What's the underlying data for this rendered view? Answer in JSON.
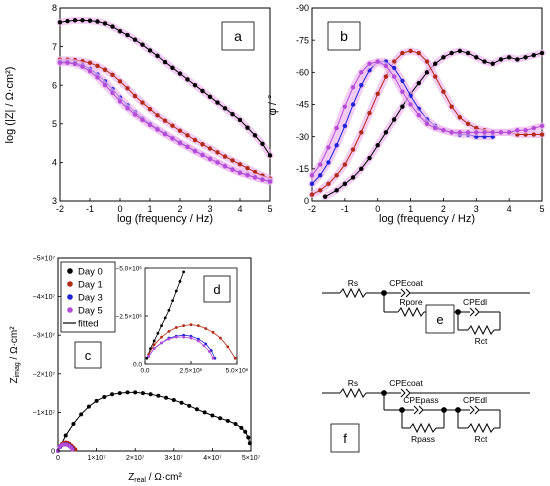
{
  "chart_data": [
    {
      "type": "scatter",
      "panel": "a",
      "xlabel": "log (frequency / Hz)",
      "ylabel": "log (|Z| / Ω·cm²)",
      "xlim": [
        -2,
        5
      ],
      "ylim": [
        3,
        8
      ],
      "xticks": [
        "-2",
        "-1",
        "0",
        "1",
        "2",
        "3",
        "4",
        "5"
      ],
      "yticks": [
        "3",
        "4",
        "5",
        "6",
        "7",
        "8"
      ],
      "series": [
        {
          "color": "#000000",
          "x": [
            -2,
            -1.75,
            -1.5,
            -1.25,
            -1,
            -0.75,
            -0.5,
            -0.25,
            0,
            0.25,
            0.5,
            0.75,
            1,
            1.25,
            1.5,
            1.75,
            2,
            2.25,
            2.5,
            2.75,
            3,
            3.25,
            3.5,
            3.75,
            4,
            4.25,
            4.5,
            4.75,
            5
          ],
          "y": [
            7.63,
            7.66,
            7.68,
            7.68,
            7.67,
            7.65,
            7.6,
            7.52,
            7.4,
            7.3,
            7.18,
            7.05,
            6.9,
            6.76,
            6.6,
            6.45,
            6.3,
            6.15,
            6.0,
            5.85,
            5.7,
            5.55,
            5.4,
            5.25,
            5.1,
            4.9,
            4.7,
            4.48,
            4.18
          ]
        },
        {
          "color": "#b22a17",
          "x": [
            -2,
            -1.75,
            -1.5,
            -1.25,
            -1,
            -0.75,
            -0.5,
            -0.25,
            0,
            0.25,
            0.5,
            0.75,
            1,
            1.25,
            1.5,
            1.75,
            2,
            2.25,
            2.5,
            2.75,
            3,
            3.25,
            3.5,
            3.75,
            4,
            4.25,
            4.5,
            4.75,
            5
          ],
          "y": [
            6.66,
            6.66,
            6.65,
            6.62,
            6.58,
            6.5,
            6.4,
            6.27,
            6.1,
            5.92,
            5.72,
            5.55,
            5.38,
            5.22,
            5.08,
            4.95,
            4.82,
            4.7,
            4.58,
            4.47,
            4.36,
            4.26,
            4.15,
            4.05,
            3.95,
            3.85,
            3.75,
            3.66,
            3.58
          ]
        },
        {
          "color": "#2222d8",
          "x": [
            -2,
            -1.75,
            -1.5,
            -1.25,
            -1,
            -0.75,
            -0.5,
            -0.25,
            0,
            0.25,
            0.5,
            0.75,
            1,
            1.25,
            1.5,
            1.75,
            2,
            2.25,
            2.5,
            2.75,
            3,
            3.25,
            3.5,
            3.75,
            4,
            4.25,
            4.5,
            4.75,
            5
          ],
          "y": [
            6.6,
            6.6,
            6.58,
            6.52,
            6.42,
            6.28,
            6.1,
            5.9,
            5.68,
            5.48,
            5.3,
            5.14,
            5.0,
            4.87,
            4.75,
            4.63,
            4.52,
            4.41,
            4.3,
            4.2,
            4.1,
            4.0,
            3.91,
            3.82,
            3.74,
            3.68,
            3.62,
            3.56,
            3.52
          ]
        },
        {
          "color": "#b34cd8",
          "x": [
            -2,
            -1.75,
            -1.5,
            -1.25,
            -1,
            -0.75,
            -0.5,
            -0.25,
            0,
            0.25,
            0.5,
            0.75,
            1,
            1.25,
            1.5,
            1.75,
            2,
            2.25,
            2.5,
            2.75,
            3,
            3.25,
            3.5,
            3.75,
            4,
            4.25,
            4.5,
            4.75,
            5
          ],
          "y": [
            6.58,
            6.58,
            6.55,
            6.48,
            6.36,
            6.2,
            6.0,
            5.8,
            5.58,
            5.4,
            5.24,
            5.1,
            4.97,
            4.85,
            4.73,
            4.62,
            4.5,
            4.4,
            4.29,
            4.19,
            4.09,
            4.0,
            3.9,
            3.81,
            3.73,
            3.67,
            3.61,
            3.55,
            3.5
          ]
        }
      ]
    },
    {
      "type": "scatter",
      "panel": "b",
      "xlabel": "log (frequency / Hz)",
      "ylabel": "φ / °",
      "xlim": [
        -2,
        5
      ],
      "ylim": [
        0,
        -90
      ],
      "xticks": [
        "-2",
        "-1",
        "0",
        "1",
        "2",
        "3",
        "4",
        "5"
      ],
      "yticks": [
        "0",
        "-15",
        "-30",
        "-45",
        "-60",
        "-75",
        "-90"
      ],
      "series": [
        {
          "color": "#000000",
          "x": [
            -1.6,
            -1.25,
            -1,
            -0.75,
            -0.5,
            -0.25,
            0,
            0.25,
            0.5,
            0.75,
            1,
            1.25,
            1.5,
            1.75,
            2,
            2.25,
            2.5,
            2.75,
            3,
            3.25,
            3.5,
            3.75,
            4,
            4.25,
            4.5,
            4.75,
            5
          ],
          "y": [
            -2,
            -5,
            -8,
            -11,
            -15,
            -20,
            -26,
            -32,
            -38,
            -44,
            -50,
            -55,
            -60,
            -64,
            -67,
            -69,
            -70,
            -69,
            -67,
            -65,
            -64,
            -66,
            -67,
            -66,
            -67,
            -68,
            -69
          ]
        },
        {
          "color": "#b22a17",
          "x": [
            -2,
            -1.75,
            -1.5,
            -1.25,
            -1,
            -0.75,
            -0.5,
            -0.25,
            0,
            0.25,
            0.5,
            0.75,
            1,
            1.25,
            1.5,
            1.75,
            2,
            2.25,
            2.5,
            2.75,
            3,
            3.25,
            3.5,
            3.75,
            4,
            4.25,
            4.5,
            4.75,
            5
          ],
          "y": [
            -3,
            -5,
            -8,
            -12,
            -17,
            -24,
            -32,
            -41,
            -50,
            -58,
            -65,
            -69,
            -70,
            -69,
            -65,
            -58,
            -51,
            -44,
            -39,
            -36,
            -34,
            -33,
            -32,
            -32,
            -32,
            -31,
            -31,
            -31,
            -31
          ]
        },
        {
          "color": "#2222d8",
          "x": [
            -2,
            -1.75,
            -1.5,
            -1.25,
            -1,
            -0.75,
            -0.5,
            -0.25,
            0,
            0.25,
            0.5,
            0.75,
            1,
            1.25,
            1.5,
            1.75,
            2,
            2.25,
            2.5,
            2.75,
            3,
            3.25,
            3.5
          ],
          "y": [
            -8,
            -12,
            -18,
            -26,
            -35,
            -45,
            -54,
            -61,
            -65,
            -65,
            -62,
            -56,
            -49,
            -43,
            -38,
            -35,
            -33,
            -32,
            -31,
            -31,
            -30,
            -30,
            -30
          ]
        },
        {
          "color": "#b34cd8",
          "x": [
            -2,
            -1.75,
            -1.5,
            -1.25,
            -1,
            -0.75,
            -0.5,
            -0.25,
            0,
            0.25,
            0.5,
            0.75,
            1,
            1.25,
            1.5,
            1.75,
            2,
            2.25,
            2.5,
            2.75,
            3,
            3.25,
            3.5,
            3.75,
            4,
            4.25,
            4.5,
            4.75,
            5
          ],
          "y": [
            -12,
            -17,
            -25,
            -34,
            -44,
            -53,
            -60,
            -64,
            -65,
            -63,
            -58,
            -51,
            -45,
            -40,
            -36,
            -34,
            -33,
            -32,
            -32,
            -32,
            -32,
            -32,
            -32,
            -32,
            -32,
            -33,
            -33,
            -34,
            -35
          ]
        }
      ]
    },
    {
      "type": "scatter",
      "panel": "c",
      "xlabel_main": "Z",
      "xlabel_sub": "real",
      "xlabel_unit": " / Ω·cm²",
      "ylabel_main": "Z",
      "ylabel_sub": "imag",
      "ylabel_unit": " / Ω·cm²",
      "xlim": [
        0,
        50000000
      ],
      "ylim": [
        0,
        -50000000
      ],
      "xticks": [
        {
          "value": 0,
          "label": "0"
        },
        {
          "value": 10000000,
          "label": "1×10⁷"
        },
        {
          "value": 20000000,
          "label": "2×10⁷"
        },
        {
          "value": 30000000,
          "label": "3×10⁷"
        },
        {
          "value": 40000000,
          "label": "4×10⁷"
        },
        {
          "value": 50000000,
          "label": "5×10⁷"
        }
      ],
      "yticks": [
        {
          "value": 0,
          "label": "0"
        },
        {
          "value": -10000000,
          "label": "−1×10⁷"
        },
        {
          "value": -20000000,
          "label": "−2×10⁷"
        },
        {
          "value": -30000000,
          "label": "−3×10⁷"
        },
        {
          "value": -40000000,
          "label": "−4×10⁷"
        },
        {
          "value": -50000000,
          "label": "−5×10⁷"
        }
      ],
      "legend": {
        "placement": "top-left",
        "entries": [
          {
            "label": "Day 0",
            "color": "#000000",
            "marker": "dot"
          },
          {
            "label": "Day 1",
            "color": "#b22a17",
            "marker": "dot"
          },
          {
            "label": "Day 3",
            "color": "#2222d8",
            "marker": "dot"
          },
          {
            "label": "Day 5",
            "color": "#b34cd8",
            "marker": "dot"
          },
          {
            "label": "fitted",
            "color": "#000000",
            "marker": "line"
          }
        ]
      },
      "series": [
        {
          "color": "#000000",
          "x": [
            500000,
            2000000,
            4000000,
            6000000,
            8000000,
            10000000,
            12000000,
            14000000,
            16000000,
            18000000,
            20000000,
            22000000,
            24000000,
            26000000,
            28000000,
            30000000,
            32000000,
            34000000,
            36000000,
            38000000,
            40000000,
            42000000,
            44000000,
            46000000,
            47500000,
            48500000,
            49300000,
            49700000
          ],
          "y": [
            -1000000,
            -4000000,
            -7000000,
            -9500000,
            -11500000,
            -13000000,
            -14000000,
            -14700000,
            -15000000,
            -15200000,
            -15200000,
            -15000000,
            -14700000,
            -14300000,
            -13800000,
            -13200000,
            -12500000,
            -11700000,
            -10800000,
            -10000000,
            -9200000,
            -8500000,
            -7800000,
            -7000000,
            -6000000,
            -5000000,
            -3500000,
            -2000000
          ]
        },
        {
          "color": "#b22a17",
          "x": [
            0,
            500000,
            1000000,
            1500000,
            2000000,
            2500000,
            3000000,
            3500000,
            4000000,
            4500000
          ],
          "y": [
            0,
            -1200000,
            -1800000,
            -2100000,
            -2200000,
            -2100000,
            -1800000,
            -1400000,
            -900000,
            -400000
          ]
        },
        {
          "color": "#2222d8",
          "x": [
            0,
            400000,
            900000,
            1400000,
            1900000,
            2400000,
            2900000,
            3400000,
            3800000
          ],
          "y": [
            0,
            -1000000,
            -1500000,
            -1700000,
            -1750000,
            -1650000,
            -1400000,
            -1000000,
            -500000
          ]
        },
        {
          "color": "#b34cd8",
          "x": [
            0,
            400000,
            900000,
            1400000,
            1900000,
            2400000,
            2900000,
            3400000,
            3700000
          ],
          "y": [
            0,
            -1000000,
            -1500000,
            -1700000,
            -1700000,
            -1600000,
            -1300000,
            -900000,
            -400000
          ]
        }
      ]
    },
    {
      "type": "scatter",
      "panel": "d",
      "xlim": [
        0,
        5000000
      ],
      "ylim": [
        0,
        -5000000
      ],
      "xticks": [
        {
          "value": 0,
          "label": "0.0"
        },
        {
          "value": 2500000,
          "label": "2.5×10⁶"
        },
        {
          "value": 5000000,
          "label": "5.0×10⁶"
        }
      ],
      "yticks": [
        {
          "value": 0,
          "label": "0.0"
        },
        {
          "value": -2500000,
          "label": "−2.5×10⁶"
        },
        {
          "value": -5000000,
          "label": "−5.0×10⁶"
        }
      ],
      "series": [
        {
          "color": "#000000",
          "x": [
            100000,
            300000,
            500000,
            700000,
            900000,
            1100000,
            1300000,
            1500000,
            1700000,
            1900000,
            2100000
          ],
          "y": [
            -300000,
            -800000,
            -1200000,
            -1600000,
            -2000000,
            -2400000,
            -2800000,
            -3300000,
            -3800000,
            -4300000,
            -4800000
          ]
        },
        {
          "color": "#b22a17",
          "x": [
            200000,
            500000,
            900000,
            1300000,
            1700000,
            2100000,
            2500000,
            2900000,
            3300000,
            3700000,
            4100000,
            4500000,
            4900000
          ],
          "y": [
            -500000,
            -1000000,
            -1400000,
            -1700000,
            -1900000,
            -2000000,
            -2050000,
            -2000000,
            -1850000,
            -1650000,
            -1350000,
            -900000,
            -300000
          ]
        },
        {
          "color": "#2222d8",
          "x": [
            200000,
            500000,
            900000,
            1300000,
            1700000,
            2100000,
            2500000,
            2900000,
            3300000,
            3600000,
            3800000
          ],
          "y": [
            -400000,
            -800000,
            -1100000,
            -1350000,
            -1450000,
            -1500000,
            -1450000,
            -1300000,
            -1050000,
            -700000,
            -300000
          ]
        },
        {
          "color": "#b34cd8",
          "x": [
            200000,
            500000,
            900000,
            1300000,
            1700000,
            2100000,
            2500000,
            2900000,
            3200000,
            3500000,
            3700000
          ],
          "y": [
            -400000,
            -800000,
            -1100000,
            -1300000,
            -1400000,
            -1400000,
            -1350000,
            -1200000,
            -950000,
            -650000,
            -300000
          ]
        }
      ]
    }
  ],
  "panel_labels": {
    "a": "a",
    "b": "b",
    "c": "c",
    "d": "d",
    "e": "e",
    "f": "f"
  },
  "circuit_e": {
    "rs": "Rs",
    "cpecoat": "CPEcoat",
    "rpore": "Rpore",
    "cpedl": "CPEdl",
    "rct": "Rct"
  },
  "circuit_f": {
    "rs": "Rs",
    "cpecoat": "CPEcoat",
    "cpepass": "CPEpass",
    "rpass": "Rpass",
    "cpedl": "CPEdl",
    "rct": "Rct"
  }
}
